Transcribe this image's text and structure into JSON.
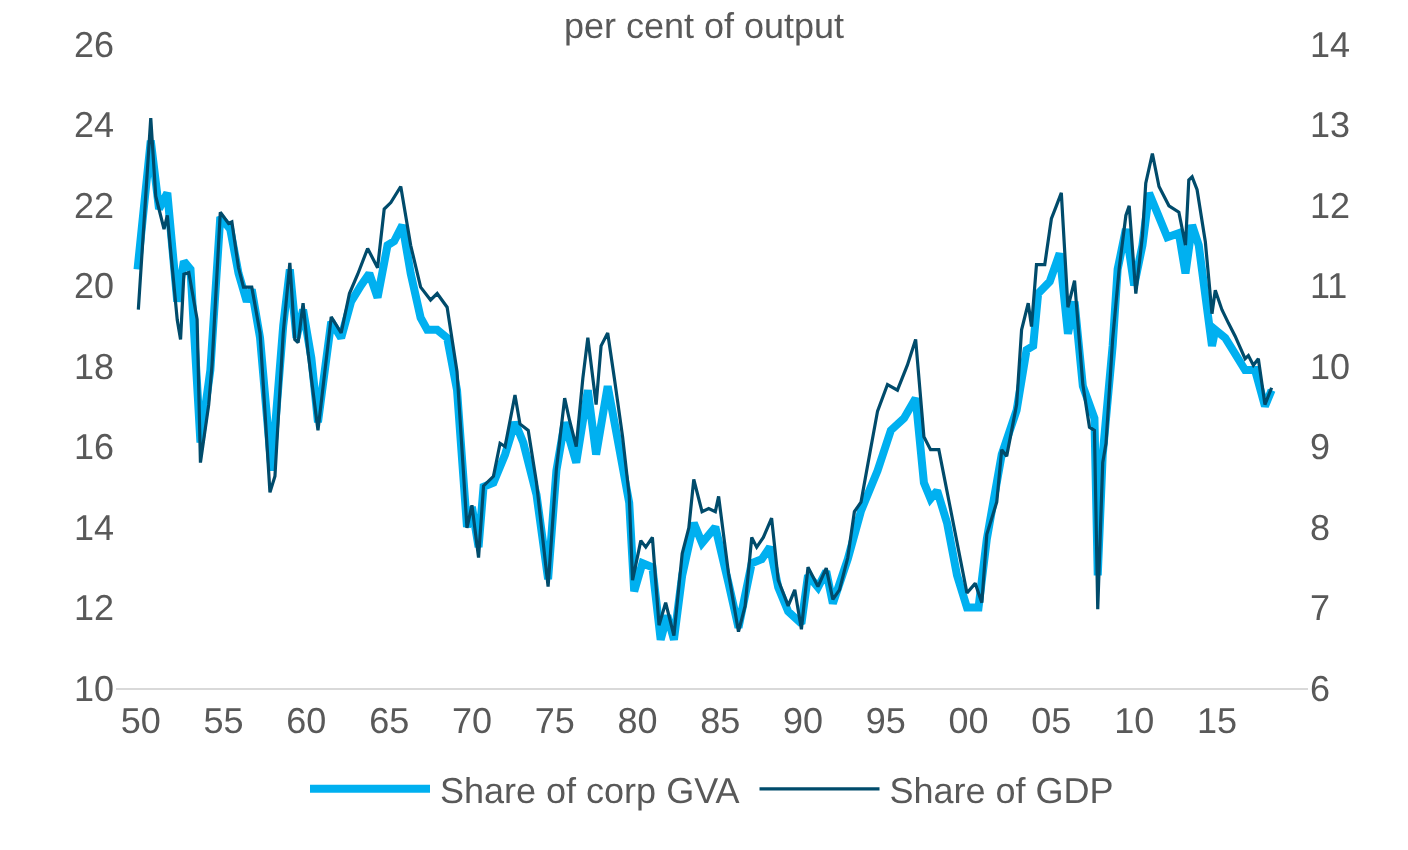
{
  "chart_data": {
    "type": "line",
    "title": "per cent of output",
    "xlim": [
      1948.5,
      2020.5
    ],
    "xticks": [
      {
        "value": 1950,
        "label": "50"
      },
      {
        "value": 1955,
        "label": "55"
      },
      {
        "value": 1960,
        "label": "60"
      },
      {
        "value": 1965,
        "label": "65"
      },
      {
        "value": 1970,
        "label": "70"
      },
      {
        "value": 1975,
        "label": "75"
      },
      {
        "value": 1980,
        "label": "80"
      },
      {
        "value": 1985,
        "label": "85"
      },
      {
        "value": 1990,
        "label": "90"
      },
      {
        "value": 1995,
        "label": "95"
      },
      {
        "value": 2000,
        "label": "00"
      },
      {
        "value": 2005,
        "label": "05"
      },
      {
        "value": 2010,
        "label": "10"
      },
      {
        "value": 2015,
        "label": "15"
      }
    ],
    "ylim": [
      10,
      26
    ],
    "yticks": [
      10,
      12,
      14,
      16,
      18,
      20,
      22,
      24,
      26
    ],
    "y2lim": [
      6,
      14
    ],
    "y2ticks": [
      6,
      7,
      8,
      9,
      10,
      11,
      12,
      13,
      14
    ],
    "grid": false,
    "legend": "bottom",
    "line_style": "solid",
    "marker": "none",
    "series": [
      {
        "name": "Share of corp GVA",
        "color": "#00b0f0",
        "x": [
          1949.8,
          1950.6,
          1951.1,
          1951.6,
          1952.2,
          1952.6,
          1953.0,
          1953.6,
          1954.2,
          1954.8,
          1955.4,
          1955.9,
          1956.4,
          1956.7,
          1957.2,
          1957.9,
          1958.6,
          1959.0,
          1959.4,
          1959.8,
          1960.3,
          1960.7,
          1961.5,
          1962.1,
          1962.7,
          1963.3,
          1963.8,
          1964.3,
          1964.9,
          1965.3,
          1965.8,
          1966.3,
          1966.9,
          1967.3,
          1967.9,
          1968.5,
          1969.1,
          1969.7,
          1970.0,
          1970.4,
          1970.7,
          1971.3,
          1972.0,
          1972.6,
          1973.1,
          1973.9,
          1974.6,
          1975.1,
          1975.6,
          1976.3,
          1977.0,
          1977.5,
          1978.2,
          1978.7,
          1979.5,
          1979.8,
          1980.3,
          1980.9,
          1981.4,
          1981.8,
          1982.2,
          1982.7,
          1983.4,
          1983.9,
          1984.7,
          1985.5,
          1986.1,
          1986.9,
          1987.5,
          1988.0,
          1988.5,
          1989.1,
          1989.9,
          1990.3,
          1990.9,
          1991.4,
          1991.8,
          1992.7,
          1993.5,
          1994.5,
          1995.3,
          1996.1,
          1996.8,
          1997.3,
          1997.7,
          1998.1,
          1998.7,
          1999.3,
          1999.9,
          2000.6,
          2001.1,
          2002.0,
          2002.9,
          2003.5,
          2003.9,
          2004.2,
          2004.9,
          2005.5,
          2006.0,
          2006.4,
          2006.9,
          2007.6,
          2007.8,
          2008.1,
          2008.7,
          2009.0,
          2009.5,
          2010.0,
          2010.5,
          2010.9,
          2011.5,
          2012.0,
          2012.7,
          2013.1,
          2013.5,
          2013.9,
          2014.7,
          2014.9,
          2015.5,
          2016.1,
          2016.7,
          2017.3,
          2017.9,
          2018.3
        ],
        "values": [
          20.4,
          23.6,
          21.9,
          22.3,
          19.6,
          20.6,
          20.4,
          16.1,
          17.9,
          21.7,
          21.4,
          20.3,
          19.6,
          19.9,
          18.7,
          15.4,
          19.0,
          20.4,
          18.7,
          19.4,
          18.2,
          16.6,
          19.1,
          18.7,
          19.6,
          20.0,
          20.3,
          19.7,
          21.0,
          21.1,
          21.5,
          20.3,
          19.2,
          18.9,
          18.9,
          18.7,
          17.4,
          14.0,
          14.5,
          13.5,
          15.0,
          15.1,
          15.8,
          16.6,
          16.1,
          14.8,
          12.7,
          15.4,
          16.6,
          15.6,
          17.4,
          15.8,
          17.5,
          16.4,
          14.6,
          12.4,
          13.1,
          13.0,
          11.2,
          11.8,
          11.2,
          12.8,
          14.1,
          13.6,
          14.0,
          12.6,
          11.5,
          13.1,
          13.2,
          13.5,
          12.5,
          11.9,
          11.6,
          12.8,
          12.5,
          12.9,
          12.1,
          13.2,
          14.4,
          15.4,
          16.4,
          16.7,
          17.2,
          15.1,
          14.7,
          14.9,
          14.1,
          12.8,
          12.0,
          12.0,
          13.7,
          15.8,
          16.9,
          18.4,
          18.5,
          19.8,
          20.1,
          20.8,
          18.8,
          19.6,
          17.5,
          16.7,
          12.8,
          15.8,
          18.5,
          20.4,
          21.4,
          20.0,
          21.0,
          22.3,
          21.7,
          21.2,
          21.3,
          20.3,
          21.5,
          21.0,
          18.5,
          18.9,
          18.7,
          18.3,
          17.9,
          17.9,
          17.0,
          17.4
        ]
      },
      {
        "name": "Share of GDP",
        "color": "#004b6b",
        "axis": "y2",
        "x": [
          1949.85,
          1950.6,
          1950.9,
          1951.4,
          1951.6,
          1952.2,
          1952.4,
          1952.6,
          1952.9,
          1953.4,
          1953.6,
          1954.1,
          1954.3,
          1954.8,
          1955.3,
          1955.5,
          1955.9,
          1956.2,
          1956.7,
          1957.2,
          1957.8,
          1958.1,
          1958.6,
          1959.0,
          1959.3,
          1959.5,
          1959.8,
          1960.1,
          1960.7,
          1961.5,
          1962.1,
          1962.6,
          1963.1,
          1963.7,
          1964.3,
          1964.7,
          1965.1,
          1965.7,
          1966.3,
          1966.9,
          1967.5,
          1967.9,
          1968.5,
          1969.1,
          1969.7,
          1970.0,
          1970.4,
          1970.7,
          1971.3,
          1971.7,
          1972.0,
          1972.6,
          1972.9,
          1973.4,
          1973.9,
          1974.6,
          1975.1,
          1975.6,
          1975.9,
          1976.3,
          1976.7,
          1977.0,
          1977.5,
          1977.8,
          1978.2,
          1978.6,
          1979.1,
          1979.5,
          1979.7,
          1980.2,
          1980.5,
          1980.9,
          1981.3,
          1981.7,
          1982.2,
          1982.7,
          1983.1,
          1983.4,
          1983.9,
          1984.3,
          1984.7,
          1984.9,
          1985.5,
          1986.1,
          1986.5,
          1986.9,
          1987.2,
          1987.6,
          1988.1,
          1988.5,
          1989.1,
          1989.5,
          1989.9,
          1990.3,
          1990.9,
          1991.4,
          1991.8,
          1992.2,
          1992.7,
          1993.1,
          1993.5,
          1994.0,
          1994.5,
          1995.1,
          1995.7,
          1996.3,
          1996.8,
          1997.3,
          1997.7,
          1998.2,
          1998.9,
          1999.9,
          2000.4,
          2000.8,
          2001.1,
          2001.7,
          2002.0,
          2002.3,
          2002.9,
          2003.2,
          2003.6,
          2003.8,
          2004.1,
          2004.6,
          2005.0,
          2005.3,
          2005.6,
          2006.0,
          2006.4,
          2006.9,
          2007.3,
          2007.6,
          2007.8,
          2008.1,
          2008.3,
          2008.7,
          2009.1,
          2009.5,
          2009.7,
          2010.1,
          2010.5,
          2010.7,
          2011.1,
          2011.5,
          2012.1,
          2012.7,
          2013.1,
          2013.3,
          2013.5,
          2013.8,
          2014.3,
          2014.7,
          2014.9,
          2015.3,
          2015.7,
          2016.1,
          2016.7,
          2016.9,
          2017.2,
          2017.5,
          2017.9,
          2018.3
        ],
        "values": [
          10.7,
          13.08,
          12.11,
          11.7,
          11.87,
          10.57,
          10.33,
          11.14,
          11.16,
          10.58,
          8.8,
          9.52,
          10.01,
          11.91,
          11.77,
          11.79,
          11.22,
          10.98,
          10.98,
          10.41,
          8.43,
          8.63,
          10.41,
          11.28,
          10.33,
          10.29,
          10.78,
          10.17,
          9.2,
          10.61,
          10.41,
          10.9,
          11.14,
          11.46,
          11.22,
          11.95,
          12.03,
          12.23,
          11.5,
          10.98,
          10.82,
          10.9,
          10.73,
          9.93,
          7.99,
          8.27,
          7.62,
          8.51,
          8.63,
          9.04,
          9.0,
          9.64,
          9.28,
          9.2,
          8.55,
          7.26,
          8.72,
          9.6,
          9.32,
          9.0,
          9.85,
          10.35,
          9.52,
          10.25,
          10.41,
          9.85,
          9.12,
          8.39,
          7.34,
          7.83,
          7.75,
          7.87,
          6.78,
          7.06,
          6.65,
          7.67,
          7.99,
          8.59,
          8.19,
          8.23,
          8.19,
          8.38,
          7.42,
          6.7,
          7.02,
          7.87,
          7.75,
          7.87,
          8.11,
          7.34,
          7.02,
          7.22,
          6.73,
          7.5,
          7.26,
          7.49,
          7.1,
          7.22,
          7.62,
          8.19,
          8.31,
          8.88,
          9.44,
          9.77,
          9.7,
          10.01,
          10.33,
          9.12,
          8.96,
          8.96,
          8.23,
          7.18,
          7.3,
          7.06,
          7.91,
          8.31,
          8.96,
          8.88,
          9.52,
          10.45,
          10.78,
          10.49,
          11.26,
          11.26,
          11.83,
          11.99,
          12.15,
          10.73,
          11.06,
          9.77,
          9.24,
          9.2,
          6.98,
          8.8,
          9.04,
          10.33,
          11.22,
          11.87,
          11.99,
          10.9,
          11.62,
          12.27,
          12.64,
          12.23,
          11.99,
          11.91,
          11.5,
          12.31,
          12.35,
          12.19,
          11.54,
          10.65,
          10.94,
          10.7,
          10.53,
          10.37,
          10.09,
          10.13,
          10.01,
          10.09,
          9.52,
          9.73
        ]
      }
    ]
  }
}
